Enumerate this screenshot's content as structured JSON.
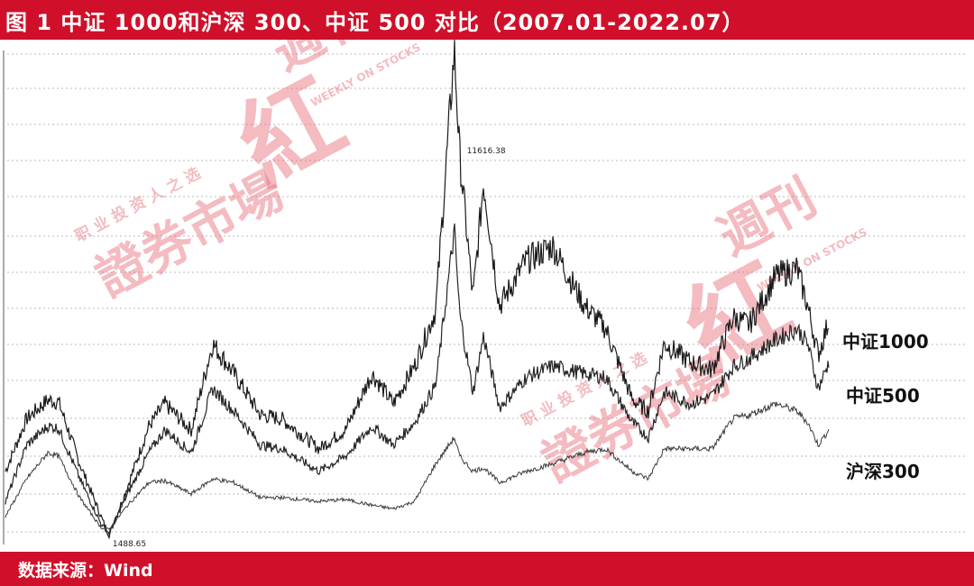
{
  "title": "图 1    中证 1000和沪深 300、中证 500 对比（2007.01-2022.07）",
  "source": "数据来源：Wind",
  "watermark": {
    "brand": "證券市場",
    "subtitle": "职 业 投 资 人 之 选",
    "weekly_en": "WEEKLY ON STOCKS",
    "weekly_cn": "週刊",
    "red_char": "紅"
  },
  "chart_data": {
    "type": "line",
    "title": "中证 1000和沪深 300、中证 500 对比（2007.01-2022.07）",
    "xlabel": "",
    "ylabel": "",
    "x_range": [
      "2007.01",
      "2022.07"
    ],
    "grid": true,
    "legend": "right",
    "series": [
      {
        "name": "中证1000",
        "color": "#1a1a1a",
        "points": [
          [
            2007.0,
            3200
          ],
          [
            2007.4,
            4600
          ],
          [
            2007.8,
            5100
          ],
          [
            2008.0,
            5050
          ],
          [
            2008.4,
            3400
          ],
          [
            2008.8,
            2000
          ],
          [
            2008.95,
            1488.65
          ],
          [
            2009.3,
            2800
          ],
          [
            2009.7,
            4400
          ],
          [
            2010.0,
            5000
          ],
          [
            2010.5,
            4300
          ],
          [
            2010.9,
            6600
          ],
          [
            2011.3,
            5800
          ],
          [
            2011.8,
            4700
          ],
          [
            2012.2,
            4600
          ],
          [
            2012.9,
            3800
          ],
          [
            2013.4,
            4300
          ],
          [
            2013.9,
            5800
          ],
          [
            2014.3,
            5000
          ],
          [
            2014.7,
            6000
          ],
          [
            2015.1,
            7500
          ],
          [
            2015.45,
            14400
          ],
          [
            2015.55,
            11616.38
          ],
          [
            2015.8,
            7800
          ],
          [
            2016.0,
            10900
          ],
          [
            2016.3,
            7600
          ],
          [
            2016.8,
            8800
          ],
          [
            2017.3,
            9200
          ],
          [
            2017.9,
            7600
          ],
          [
            2018.3,
            7000
          ],
          [
            2018.8,
            5100
          ],
          [
            2019.1,
            4800
          ],
          [
            2019.4,
            6600
          ],
          [
            2019.9,
            6100
          ],
          [
            2020.3,
            5900
          ],
          [
            2020.7,
            7300
          ],
          [
            2021.0,
            7100
          ],
          [
            2021.5,
            8400
          ],
          [
            2021.9,
            8600
          ],
          [
            2022.1,
            7600
          ],
          [
            2022.3,
            6300
          ],
          [
            2022.5,
            7200
          ]
        ]
      },
      {
        "name": "中证500",
        "color": "#262626",
        "points": [
          [
            2007.0,
            2400
          ],
          [
            2007.4,
            3900
          ],
          [
            2007.8,
            4400
          ],
          [
            2008.0,
            4350
          ],
          [
            2008.4,
            3000
          ],
          [
            2008.8,
            1800
          ],
          [
            2008.95,
            1550
          ],
          [
            2009.3,
            2600
          ],
          [
            2009.7,
            3700
          ],
          [
            2010.0,
            4300
          ],
          [
            2010.5,
            3700
          ],
          [
            2010.9,
            5400
          ],
          [
            2011.3,
            4800
          ],
          [
            2011.8,
            3900
          ],
          [
            2012.2,
            3800
          ],
          [
            2012.9,
            3200
          ],
          [
            2013.4,
            3600
          ],
          [
            2013.9,
            4400
          ],
          [
            2014.3,
            3900
          ],
          [
            2014.7,
            4500
          ],
          [
            2015.1,
            5500
          ],
          [
            2015.45,
            9600
          ],
          [
            2015.55,
            7400
          ],
          [
            2015.8,
            5300
          ],
          [
            2016.0,
            6800
          ],
          [
            2016.3,
            4900
          ],
          [
            2016.8,
            5700
          ],
          [
            2017.3,
            6000
          ],
          [
            2017.9,
            5800
          ],
          [
            2018.3,
            5700
          ],
          [
            2018.8,
            4500
          ],
          [
            2019.1,
            4100
          ],
          [
            2019.4,
            5300
          ],
          [
            2019.9,
            5000
          ],
          [
            2020.3,
            5200
          ],
          [
            2020.7,
            6000
          ],
          [
            2021.0,
            6200
          ],
          [
            2021.5,
            6700
          ],
          [
            2021.9,
            7000
          ],
          [
            2022.1,
            6600
          ],
          [
            2022.3,
            5400
          ],
          [
            2022.5,
            6100
          ]
        ]
      },
      {
        "name": "沪深300",
        "color": "#3a3a3a",
        "points": [
          [
            2007.0,
            2000
          ],
          [
            2007.4,
            3000
          ],
          [
            2007.8,
            3700
          ],
          [
            2008.0,
            3600
          ],
          [
            2008.4,
            2500
          ],
          [
            2008.8,
            1700
          ],
          [
            2008.95,
            1650
          ],
          [
            2009.3,
            2300
          ],
          [
            2009.7,
            2900
          ],
          [
            2010.0,
            2950
          ],
          [
            2010.5,
            2600
          ],
          [
            2010.9,
            3000
          ],
          [
            2011.3,
            2900
          ],
          [
            2011.8,
            2500
          ],
          [
            2012.2,
            2500
          ],
          [
            2012.9,
            2400
          ],
          [
            2013.4,
            2450
          ],
          [
            2013.9,
            2300
          ],
          [
            2014.3,
            2200
          ],
          [
            2014.7,
            2400
          ],
          [
            2015.1,
            3400
          ],
          [
            2015.45,
            4100
          ],
          [
            2015.55,
            3600
          ],
          [
            2015.8,
            3200
          ],
          [
            2016.0,
            3300
          ],
          [
            2016.3,
            2900
          ],
          [
            2016.8,
            3200
          ],
          [
            2017.3,
            3400
          ],
          [
            2017.9,
            3700
          ],
          [
            2018.3,
            3800
          ],
          [
            2018.8,
            3200
          ],
          [
            2019.1,
            3000
          ],
          [
            2019.4,
            3800
          ],
          [
            2019.9,
            3800
          ],
          [
            2020.3,
            3800
          ],
          [
            2020.7,
            4600
          ],
          [
            2021.0,
            4700
          ],
          [
            2021.5,
            5000
          ],
          [
            2021.9,
            4800
          ],
          [
            2022.1,
            4500
          ],
          [
            2022.3,
            3900
          ],
          [
            2022.5,
            4300
          ]
        ]
      }
    ],
    "annotations": [
      {
        "text": "11616.38",
        "x": 2015.55,
        "y": 11616.38
      },
      {
        "text": "1488.65",
        "x": 2008.95,
        "y": 1488.65
      }
    ],
    "labels": [
      "中证1000",
      "中证500",
      "沪深300"
    ]
  }
}
